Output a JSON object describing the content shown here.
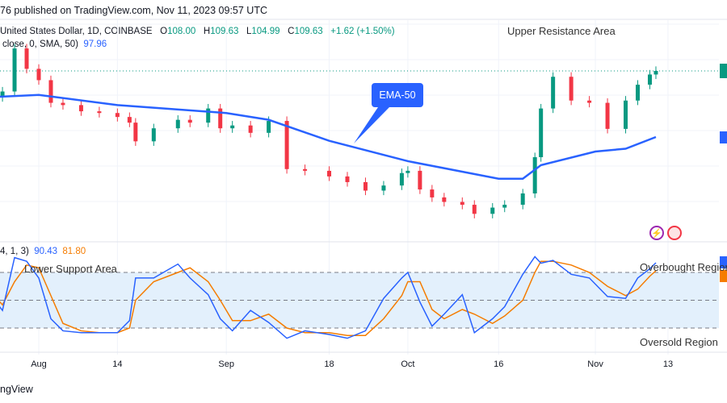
{
  "header": {
    "published": "76 published on TradingView.com, Nov 11, 2023 09:57 UTC"
  },
  "legend": {
    "symbol": "United States Dollar, 1D, COINBASE",
    "o_label": "O",
    "o": "108.00",
    "h_label": "H",
    "h": "109.63",
    "l_label": "L",
    "l": "104.99",
    "c_label": "C",
    "c": "109.63",
    "change": "+1.62 (+1.50%)",
    "ma_label": "close, 0, SMA, 50)",
    "ma_value": "97.96",
    "stoch_label": "4, 1, 3)",
    "stoch_k": "90.43",
    "stoch_d": "81.80"
  },
  "annotations": {
    "upper": "Upper Resistance Area",
    "ema": "EMA-50",
    "lower": "Lower Support Area",
    "overbought": "Overbought Region",
    "oversold": "Oversold Region"
  },
  "time_axis": [
    {
      "label": "Aug",
      "date": "2023-08-01"
    },
    {
      "label": "14",
      "date": "2023-08-14"
    },
    {
      "label": "Sep",
      "date": "2023-09-01"
    },
    {
      "label": "18",
      "date": "2023-09-18"
    },
    {
      "label": "Oct",
      "date": "2023-10-01"
    },
    {
      "label": "16",
      "date": "2023-10-16"
    },
    {
      "label": "Nov",
      "date": "2023-11-01"
    },
    {
      "label": "13",
      "date": "2023-11-13"
    }
  ],
  "footer": "ngView",
  "colors": {
    "up": "#089981",
    "down": "#f23645",
    "ema": "#2962ff",
    "k": "#2962ff",
    "d": "#f57c00",
    "band": "#e3f0fc"
  },
  "chart_data": {
    "type": "candlestick",
    "columns": [
      "date",
      "close",
      "stoch_k",
      "stoch_d"
    ],
    "rows": [
      [
        "2023-07-24",
        105,
        56,
        60
      ],
      [
        "2023-07-26",
        106,
        39,
        45
      ],
      [
        "2023-07-28",
        113.6,
        96,
        70
      ],
      [
        "2023-07-30",
        110,
        92,
        88
      ],
      [
        "2023-08-01",
        108,
        74,
        85
      ],
      [
        "2023-08-03",
        104,
        30,
        55
      ],
      [
        "2023-08-05",
        103.6,
        17,
        25
      ],
      [
        "2023-08-08",
        102.5,
        15,
        17
      ],
      [
        "2023-08-11",
        102.2,
        15,
        15
      ],
      [
        "2023-08-14",
        101.5,
        15,
        15
      ],
      [
        "2023-08-16",
        100.5,
        28,
        20
      ],
      [
        "2023-08-17",
        97.2,
        74,
        50
      ],
      [
        "2023-08-20",
        99.5,
        74,
        70
      ],
      [
        "2023-08-24",
        101,
        89,
        80
      ],
      [
        "2023-08-26",
        100.5,
        74,
        85
      ],
      [
        "2023-08-29",
        103,
        56,
        70
      ],
      [
        "2023-08-31",
        99.5,
        30,
        50
      ],
      [
        "2023-09-02",
        100,
        17,
        28
      ],
      [
        "2023-09-05",
        98.7,
        39,
        28
      ],
      [
        "2023-09-08",
        100.8,
        26,
        35
      ],
      [
        "2023-09-11",
        92.3,
        9,
        20
      ],
      [
        "2023-09-14",
        92,
        17,
        15
      ],
      [
        "2023-09-18",
        91,
        13,
        15
      ],
      [
        "2023-09-21",
        90,
        9,
        12
      ],
      [
        "2023-09-24",
        88.5,
        17,
        12
      ],
      [
        "2023-09-27",
        89.4,
        52,
        30
      ],
      [
        "2023-09-30",
        91.6,
        74,
        55
      ],
      [
        "2023-10-01",
        92,
        80,
        70
      ],
      [
        "2023-10-03",
        88.7,
        48,
        70
      ],
      [
        "2023-10-05",
        87.3,
        22,
        40
      ],
      [
        "2023-10-07",
        86.5,
        35,
        30
      ],
      [
        "2023-10-10",
        86,
        56,
        40
      ],
      [
        "2023-10-12",
        84.4,
        15,
        35
      ],
      [
        "2023-10-15",
        85.5,
        30,
        25
      ],
      [
        "2023-10-17",
        86,
        43,
        33
      ],
      [
        "2023-10-20",
        88,
        78,
        50
      ],
      [
        "2023-10-22",
        94.4,
        97,
        80
      ],
      [
        "2023-10-23",
        103,
        90,
        92
      ],
      [
        "2023-10-25",
        108.6,
        93,
        92
      ],
      [
        "2023-10-28",
        104.4,
        78,
        88
      ],
      [
        "2023-10-31",
        104,
        74,
        80
      ],
      [
        "2023-11-03",
        99.4,
        54,
        65
      ],
      [
        "2023-11-06",
        104.4,
        52,
        55
      ],
      [
        "2023-11-08",
        107.2,
        74,
        62
      ],
      [
        "2023-11-10",
        109,
        84,
        76
      ],
      [
        "2023-11-11",
        109.63,
        90.43,
        81.8
      ]
    ],
    "ma": [
      [
        "2023-07-24",
        105
      ],
      [
        "2023-08-01",
        105.4
      ],
      [
        "2023-08-14",
        103.6
      ],
      [
        "2023-09-01",
        102.2
      ],
      [
        "2023-09-08",
        101
      ],
      [
        "2023-09-18",
        97.3
      ],
      [
        "2023-10-01",
        93.7
      ],
      [
        "2023-10-16",
        90.6
      ],
      [
        "2023-10-20",
        90.6
      ],
      [
        "2023-10-23",
        93
      ],
      [
        "2023-11-01",
        95.4
      ],
      [
        "2023-11-06",
        95.9
      ],
      [
        "2023-11-11",
        97.96
      ]
    ],
    "stoch_levels": [
      80,
      50,
      20
    ],
    "last_price": 109.63
  }
}
